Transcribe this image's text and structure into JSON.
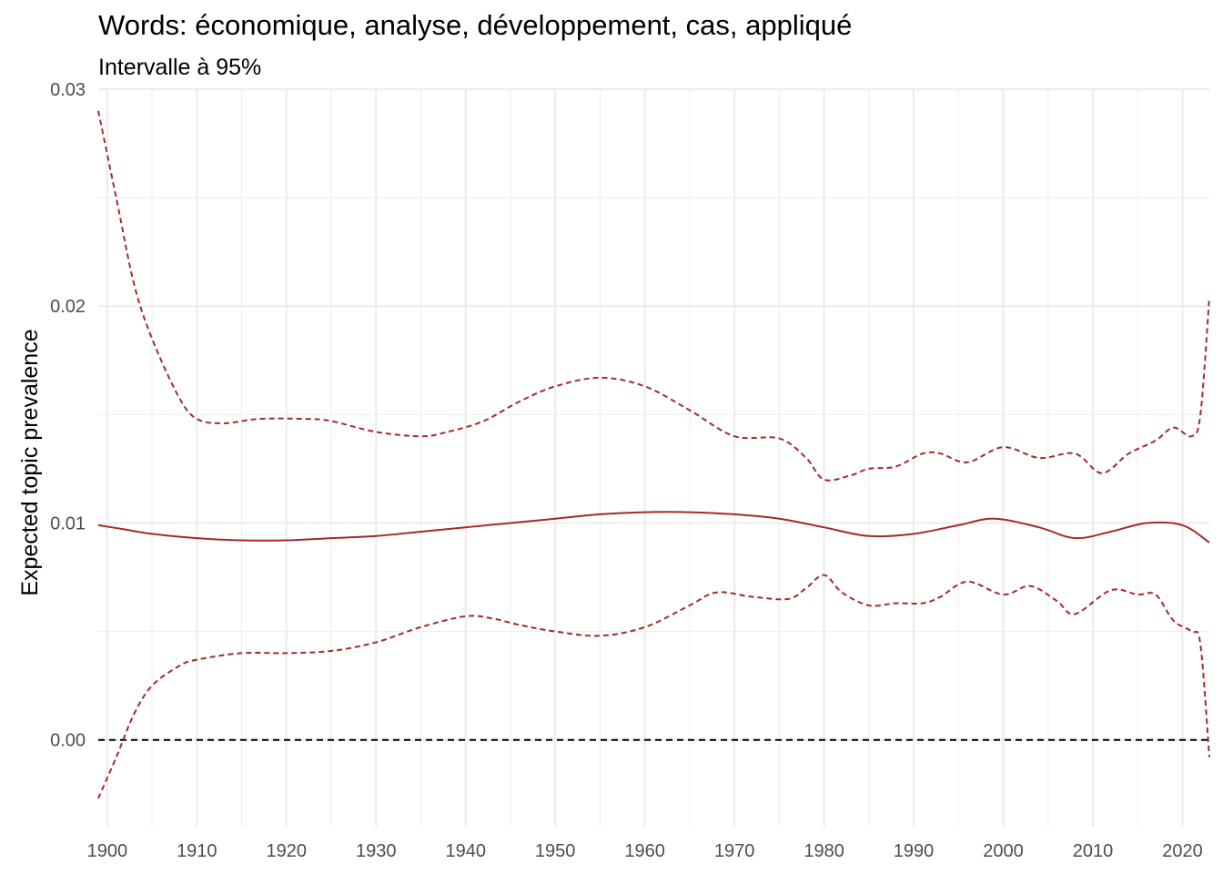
{
  "chart_data": {
    "type": "line",
    "title": "Words: économique, analyse, développement, cas, appliqué",
    "subtitle": "Intervalle à 95%",
    "xlabel": "",
    "ylabel": "Expected topic prevalence",
    "xlim": [
      1899,
      2023
    ],
    "ylim": [
      -0.004,
      0.03
    ],
    "x_ticks": [
      1900,
      1910,
      1920,
      1930,
      1940,
      1950,
      1960,
      1970,
      1980,
      1990,
      2000,
      2010,
      2020
    ],
    "x_tick_labels": [
      "1900",
      "1910",
      "1920",
      "1930",
      "1940",
      "1950",
      "1960",
      "1970",
      "1980",
      "1990",
      "2000",
      "2010",
      "2020"
    ],
    "y_ticks": [
      0,
      0.01,
      0.02,
      0.03
    ],
    "y_tick_labels": [
      "0.00",
      "0.01",
      "0.02",
      "0.03"
    ],
    "grid": true,
    "reference_line": 0,
    "colors": {
      "series": "#a52a2a",
      "reference": "#000000",
      "grid": "#ebebeb"
    },
    "series": [
      {
        "role": "estimate",
        "style": "solid",
        "x": [
          1899,
          1902,
          1905,
          1910,
          1915,
          1920,
          1925,
          1930,
          1935,
          1940,
          1945,
          1950,
          1955,
          1960,
          1965,
          1970,
          1975,
          1980,
          1985,
          1990,
          1995,
          1999,
          2004,
          2008,
          2012,
          2016,
          2020,
          2023
        ],
        "y": [
          0.0099,
          0.0097,
          0.0095,
          0.0093,
          0.0092,
          0.0092,
          0.0093,
          0.0094,
          0.0096,
          0.0098,
          0.01,
          0.0102,
          0.0104,
          0.0105,
          0.0105,
          0.0104,
          0.0102,
          0.0098,
          0.0094,
          0.0095,
          0.0099,
          0.0102,
          0.0098,
          0.0093,
          0.0096,
          0.01,
          0.0099,
          0.0091
        ]
      },
      {
        "role": "upper 95%",
        "style": "dashed",
        "x": [
          1899,
          1901,
          1903,
          1905,
          1908,
          1910,
          1913,
          1917,
          1922,
          1925,
          1930,
          1935,
          1938,
          1942,
          1946,
          1950,
          1955,
          1960,
          1965,
          1970,
          1975,
          1978,
          1980,
          1983,
          1985,
          1988,
          1991,
          1993,
          1996,
          2000,
          2004,
          2008,
          2011,
          2014,
          2017,
          2019,
          2021,
          2022,
          2023
        ],
        "y": [
          0.029,
          0.025,
          0.021,
          0.0185,
          0.0158,
          0.0148,
          0.0146,
          0.0148,
          0.0148,
          0.0147,
          0.0142,
          0.014,
          0.0142,
          0.0147,
          0.0156,
          0.0163,
          0.0167,
          0.0163,
          0.0152,
          0.014,
          0.0139,
          0.013,
          0.012,
          0.0122,
          0.0125,
          0.0126,
          0.0132,
          0.0132,
          0.0128,
          0.0135,
          0.013,
          0.0132,
          0.0123,
          0.0132,
          0.0138,
          0.0144,
          0.014,
          0.015,
          0.0204
        ]
      },
      {
        "role": "lower 95%",
        "style": "dashed",
        "x": [
          1899,
          1901,
          1903,
          1905,
          1908,
          1910,
          1915,
          1920,
          1925,
          1930,
          1935,
          1940,
          1943,
          1946,
          1950,
          1955,
          1960,
          1965,
          1968,
          1972,
          1976,
          1978,
          1980,
          1982,
          1985,
          1988,
          1991,
          1993,
          1996,
          2000,
          2003,
          2006,
          2008,
          2012,
          2015,
          2017,
          2019,
          2021,
          2022,
          2023
        ],
        "y": [
          -0.0027,
          -0.0008,
          0.0012,
          0.0025,
          0.0034,
          0.0037,
          0.004,
          0.004,
          0.0041,
          0.0045,
          0.0052,
          0.0057,
          0.0056,
          0.0053,
          0.005,
          0.0048,
          0.0052,
          0.0062,
          0.0068,
          0.0066,
          0.0065,
          0.007,
          0.0076,
          0.0068,
          0.0062,
          0.0063,
          0.0063,
          0.0066,
          0.0073,
          0.0067,
          0.0071,
          0.0064,
          0.0058,
          0.0069,
          0.0067,
          0.0067,
          0.0055,
          0.005,
          0.0044,
          -0.0008
        ]
      }
    ]
  }
}
